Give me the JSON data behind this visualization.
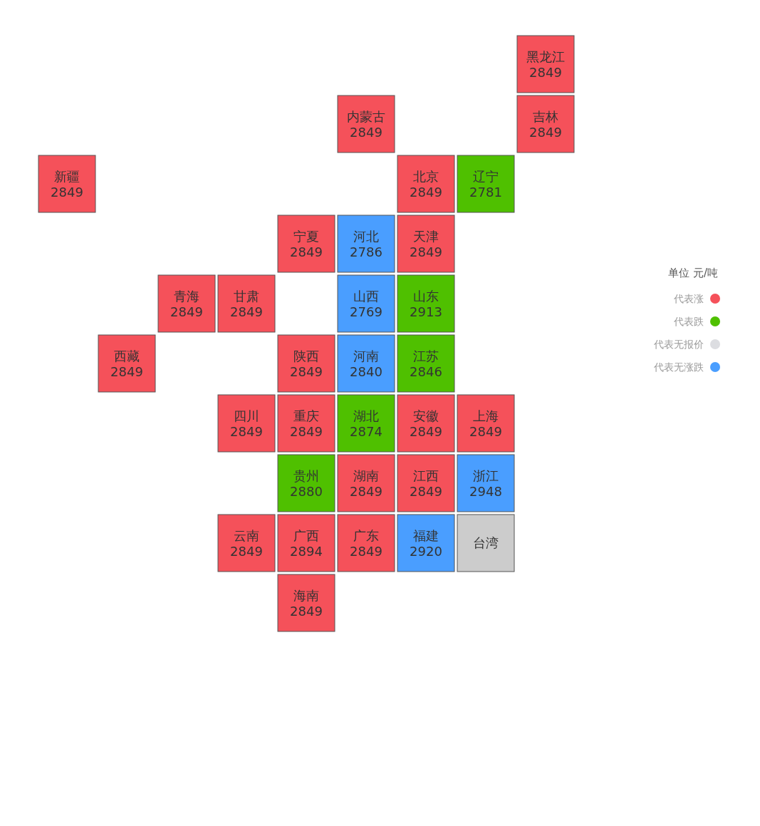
{
  "chart_data": {
    "type": "other",
    "legend_title": "单位 元/吨",
    "legend": "right",
    "data_labels": true,
    "categories": [
      "黑龙江",
      "内蒙古",
      "吉林",
      "新疆",
      "北京",
      "辽宁",
      "宁夏",
      "河北",
      "天津",
      "青海",
      "甘肃",
      "山西",
      "山东",
      "西藏",
      "陕西",
      "河南",
      "江苏",
      "四川",
      "重庆",
      "湖北",
      "安徽",
      "上海",
      "贵州",
      "湖南",
      "江西",
      "浙江",
      "云南",
      "广西",
      "广东",
      "福建",
      "台湾",
      "海南"
    ],
    "colors": [
      "#f5515a",
      "#f5515a",
      "#f5515a",
      "#f5515a",
      "#f5515a",
      "#4fc000",
      "#f5515a",
      "#4a9eff",
      "#f5515a",
      "#f5515a",
      "#f5515a",
      "#4a9eff",
      "#4fc000",
      "#f5515a",
      "#f5515a",
      "#4a9eff",
      "#4fc000",
      "#f5515a",
      "#f5515a",
      "#4fc000",
      "#f5515a",
      "#f5515a",
      "#4fc000",
      "#f5515a",
      "#f5515a",
      "#4a9eff",
      "#f5515a",
      "#f5515a",
      "#f5515a",
      "#4a9eff",
      "#cccccc",
      "#f5515a"
    ],
    "series": [
      {
        "name": "代表涨",
        "color": "#f5515a",
        "values": [
          2849,
          2849,
          2849,
          2849,
          2849,
          null,
          2849,
          null,
          2849,
          2849,
          2849,
          null,
          null,
          2849,
          2849,
          null,
          null,
          2849,
          2849,
          null,
          2849,
          2849,
          null,
          2849,
          2849,
          null,
          2849,
          2894,
          2849,
          null,
          null,
          2849
        ]
      },
      {
        "name": "代表跌",
        "color": "#4fc000",
        "values": [
          null,
          null,
          null,
          null,
          null,
          2781,
          null,
          null,
          null,
          null,
          null,
          null,
          2913,
          null,
          null,
          null,
          2846,
          null,
          null,
          2874,
          null,
          null,
          2880,
          null,
          null,
          null,
          null,
          null,
          null,
          null,
          null,
          null
        ]
      },
      {
        "name": "代表无报价",
        "color": "#dcdde1",
        "values": [
          null,
          null,
          null,
          null,
          null,
          null,
          null,
          null,
          null,
          null,
          null,
          null,
          null,
          null,
          null,
          null,
          null,
          null,
          null,
          null,
          null,
          null,
          null,
          null,
          null,
          null,
          null,
          null,
          null,
          null,
          null,
          null
        ]
      },
      {
        "name": "代表无涨跌",
        "color": "#4a9eff",
        "values": [
          null,
          null,
          null,
          null,
          null,
          null,
          null,
          2786,
          null,
          null,
          null,
          2769,
          null,
          null,
          null,
          2840,
          null,
          null,
          null,
          null,
          null,
          null,
          null,
          null,
          null,
          2948,
          null,
          null,
          null,
          2920,
          null,
          null
        ]
      }
    ]
  }
}
